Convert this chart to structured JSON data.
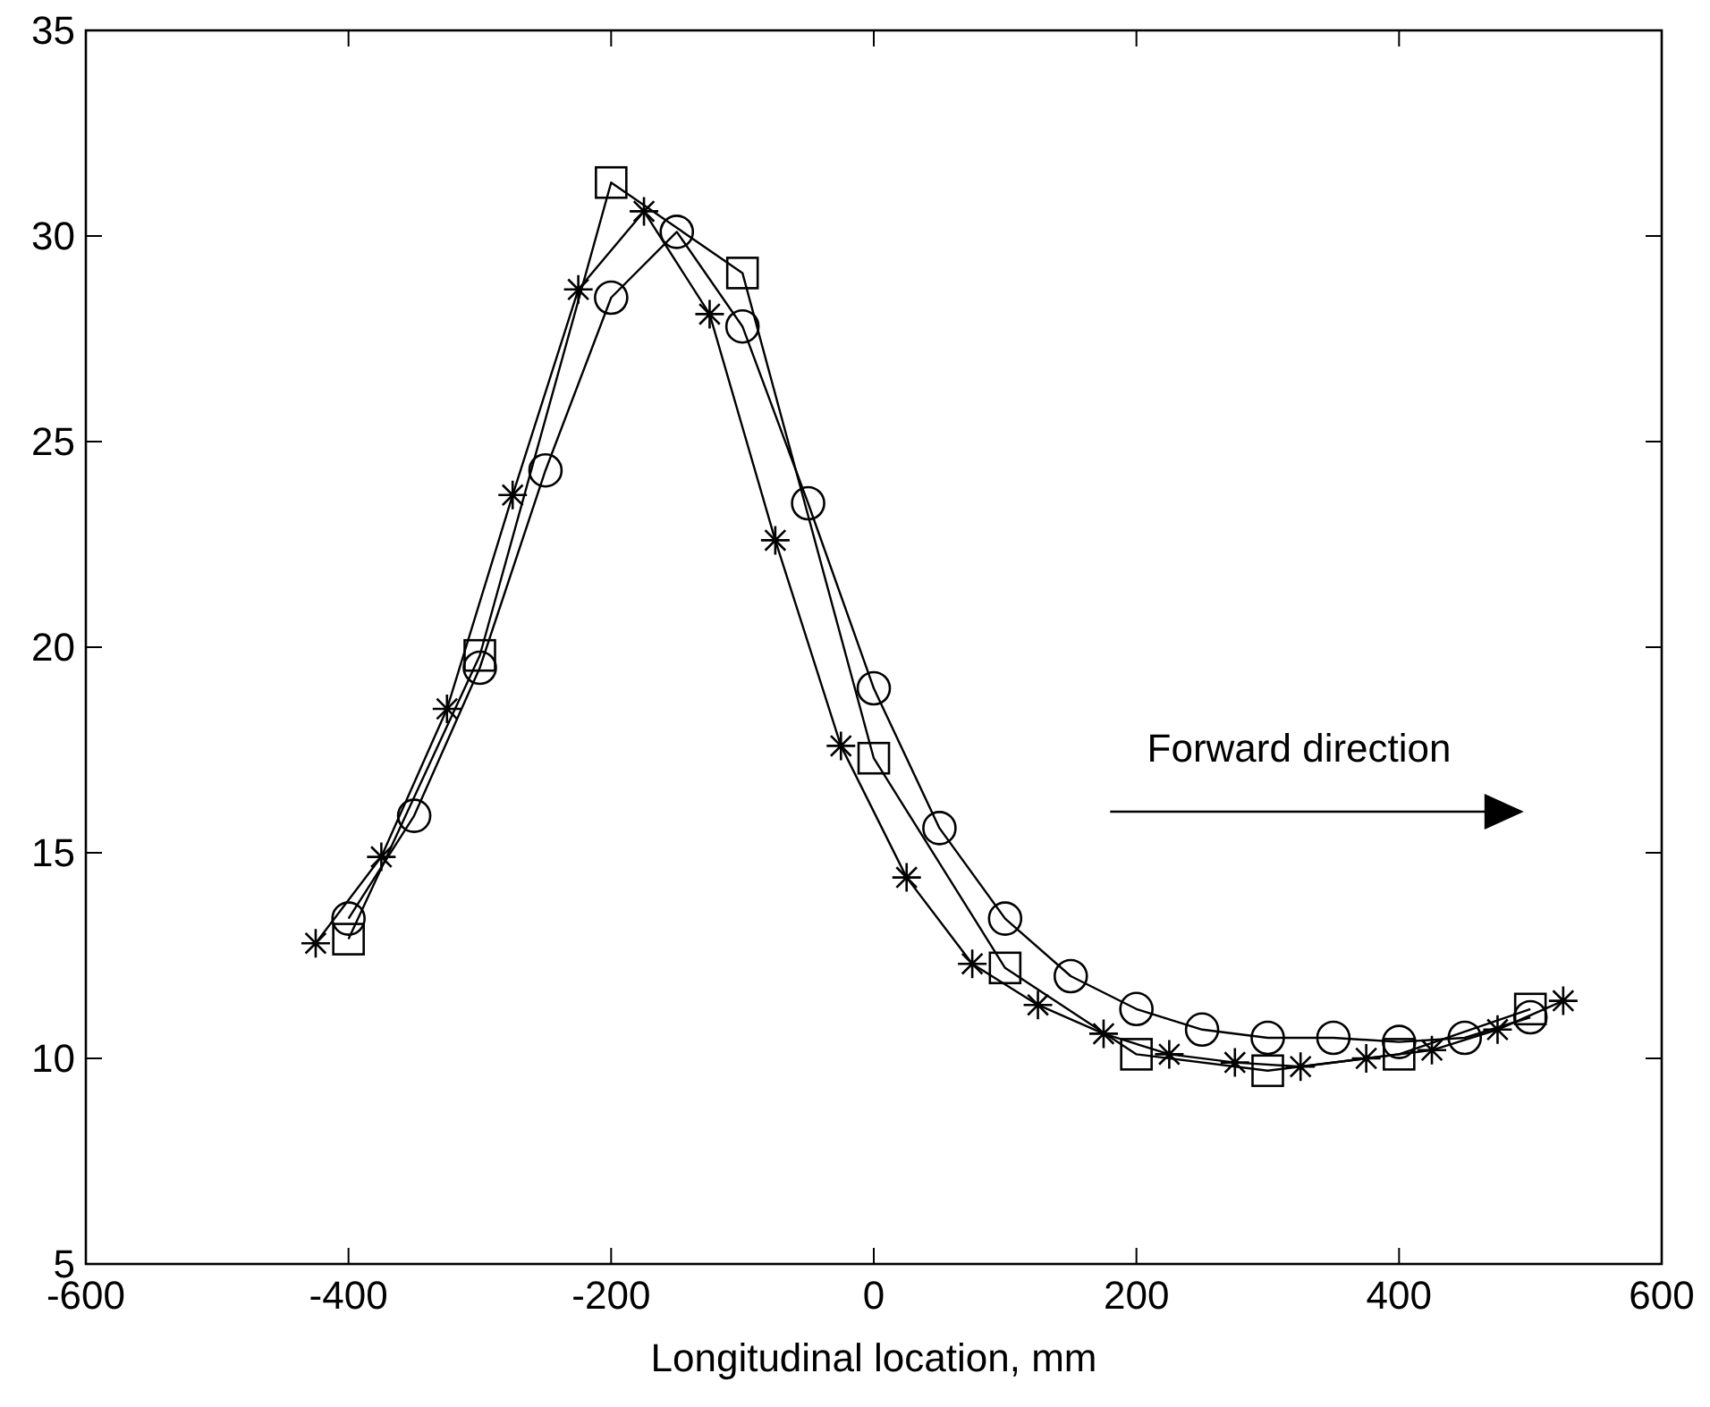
{
  "chart_data": {
    "type": "line",
    "xlabel": "Longitudinal location, mm",
    "annotations": [
      "Forward direction"
    ],
    "xlim": [
      -600,
      600
    ],
    "xticks": [
      -600,
      -400,
      -200,
      0,
      200,
      400,
      600
    ],
    "ylim": [
      5,
      35
    ],
    "yticks": [
      5,
      10,
      15,
      20,
      25,
      30,
      35
    ],
    "grid": false,
    "line_style": "solid",
    "series": [
      {
        "color": "#000000",
        "marker": "circle",
        "x": [
          -400,
          -350,
          -300,
          -250,
          -200,
          -150,
          -100,
          -50,
          0,
          50,
          100,
          150,
          200,
          250,
          300,
          350,
          400,
          450,
          500
        ],
        "values": [
          13.4,
          15.9,
          19.5,
          24.3,
          28.5,
          30.1,
          27.8,
          23.5,
          19.0,
          15.6,
          13.4,
          12.0,
          11.2,
          10.7,
          10.5,
          10.5,
          10.4,
          10.5,
          11.0
        ]
      },
      {
        "color": "#000000",
        "marker": "square",
        "x": [
          -400,
          -300,
          -200,
          -100,
          0,
          100,
          200,
          300,
          400,
          500
        ],
        "values": [
          12.9,
          19.8,
          31.3,
          29.1,
          17.3,
          12.2,
          10.1,
          9.7,
          10.1,
          11.2
        ]
      },
      {
        "color": "#000000",
        "marker": "cross",
        "x": [
          -425,
          -375,
          -325,
          -275,
          -225,
          -175,
          -125,
          -75,
          -25,
          25,
          75,
          125,
          175,
          225,
          275,
          325,
          375,
          425,
          475,
          525
        ],
        "values": [
          12.8,
          14.9,
          18.5,
          23.7,
          28.7,
          30.6,
          28.1,
          22.6,
          17.6,
          14.4,
          12.3,
          11.3,
          10.6,
          10.1,
          9.9,
          9.8,
          10.0,
          10.2,
          10.7,
          11.4
        ]
      }
    ]
  }
}
